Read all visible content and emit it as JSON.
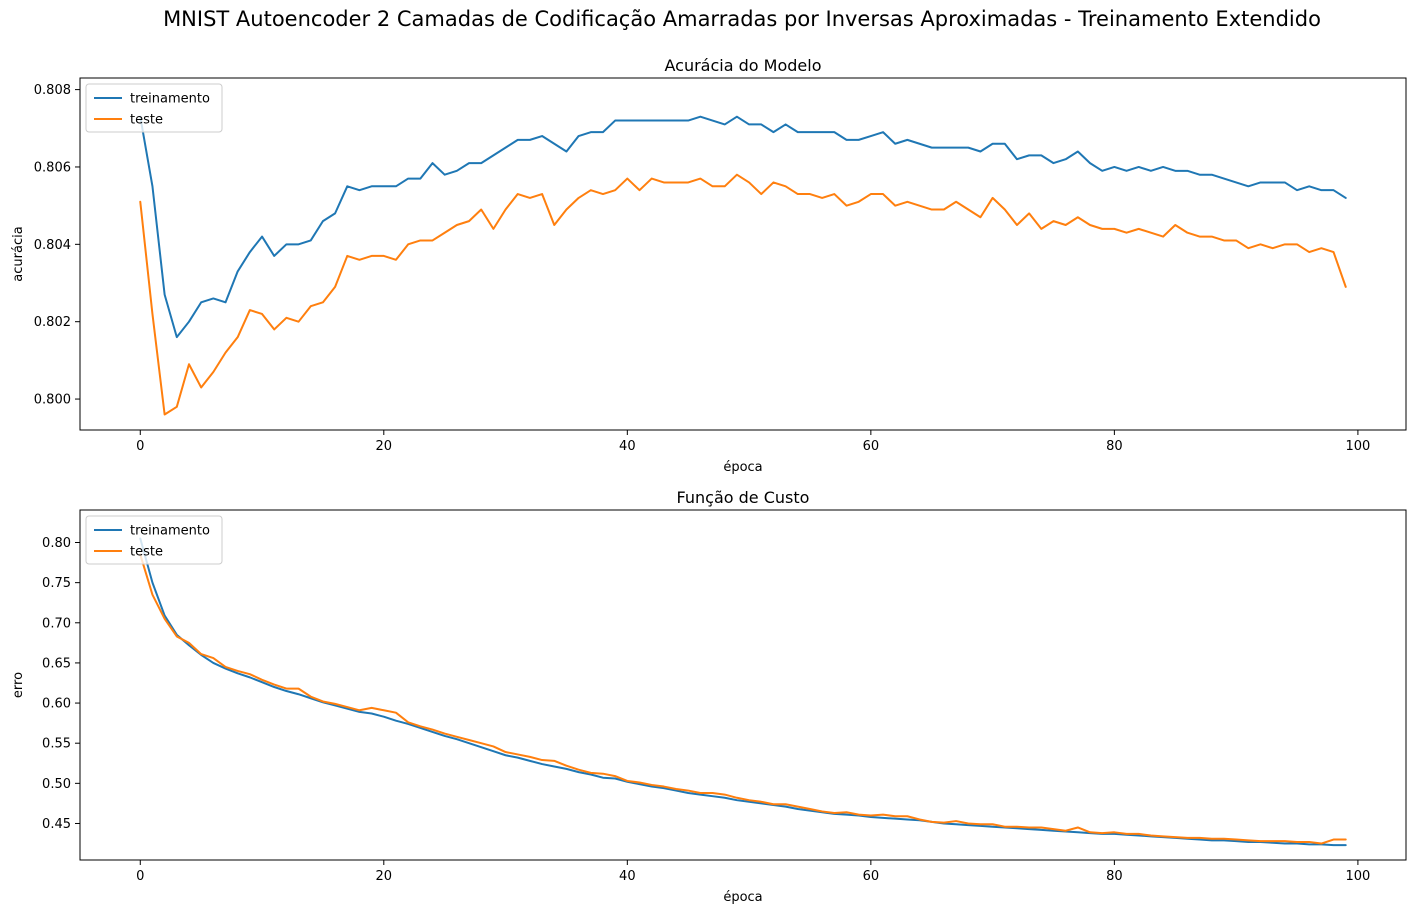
{
  "suptitle": "MNIST Autoencoder 2 Camadas de Codificação Amarradas por Inversas Aproximadas - Treinamento Extendido",
  "colors": {
    "treinamento": "#1f77b4",
    "teste": "#ff7f0e"
  },
  "chart_data": [
    {
      "type": "line",
      "title": "Acurácia do Modelo",
      "xlabel": "época",
      "ylabel": "acurácia",
      "xlim": [
        -4.95,
        103.95
      ],
      "ylim": [
        0.7992,
        0.8083
      ],
      "xticks": [
        0,
        20,
        40,
        60,
        80,
        100
      ],
      "xtick_labels": [
        "0",
        "20",
        "40",
        "60",
        "80",
        "100"
      ],
      "yticks": [
        0.8,
        0.802,
        0.804,
        0.806,
        0.808
      ],
      "ytick_labels": [
        "0.800",
        "0.802",
        "0.804",
        "0.806",
        "0.808"
      ],
      "legend": {
        "position": "upper left",
        "entries": [
          "treinamento",
          "teste"
        ]
      },
      "grid": false,
      "series": [
        {
          "name": "treinamento",
          "color": "#1f77b4",
          "values": [
            0.8073,
            0.8055,
            0.8027,
            0.8016,
            0.802,
            0.8025,
            0.8026,
            0.8025,
            0.8033,
            0.8038,
            0.8042,
            0.8037,
            0.804,
            0.804,
            0.8041,
            0.8046,
            0.8048,
            0.8055,
            0.8054,
            0.8055,
            0.8055,
            0.8055,
            0.8057,
            0.8057,
            0.8061,
            0.8058,
            0.8059,
            0.8061,
            0.8061,
            0.8063,
            0.8065,
            0.8067,
            0.8067,
            0.8068,
            0.8066,
            0.8064,
            0.8068,
            0.8069,
            0.8069,
            0.8072,
            0.8072,
            0.8072,
            0.8072,
            0.8072,
            0.8072,
            0.8072,
            0.8073,
            0.8072,
            0.8071,
            0.8073,
            0.8071,
            0.8071,
            0.8069,
            0.8071,
            0.8069,
            0.8069,
            0.8069,
            0.8069,
            0.8067,
            0.8067,
            0.8068,
            0.8069,
            0.8066,
            0.8067,
            0.8066,
            0.8065,
            0.8065,
            0.8065,
            0.8065,
            0.8064,
            0.8066,
            0.8066,
            0.8062,
            0.8063,
            0.8063,
            0.8061,
            0.8062,
            0.8064,
            0.8061,
            0.8059,
            0.806,
            0.8059,
            0.806,
            0.8059,
            0.806,
            0.8059,
            0.8059,
            0.8058,
            0.8058,
            0.8057,
            0.8056,
            0.8055,
            0.8056,
            0.8056,
            0.8056,
            0.8054,
            0.8055,
            0.8054,
            0.8054,
            0.8052
          ]
        },
        {
          "name": "teste",
          "color": "#ff7f0e",
          "values": [
            0.8051,
            0.8022,
            0.7996,
            0.7998,
            0.8009,
            0.8003,
            0.8007,
            0.8012,
            0.8016,
            0.8023,
            0.8022,
            0.8018,
            0.8021,
            0.802,
            0.8024,
            0.8025,
            0.8029,
            0.8037,
            0.8036,
            0.8037,
            0.8037,
            0.8036,
            0.804,
            0.8041,
            0.8041,
            0.8043,
            0.8045,
            0.8046,
            0.8049,
            0.8044,
            0.8049,
            0.8053,
            0.8052,
            0.8053,
            0.8045,
            0.8049,
            0.8052,
            0.8054,
            0.8053,
            0.8054,
            0.8057,
            0.8054,
            0.8057,
            0.8056,
            0.8056,
            0.8056,
            0.8057,
            0.8055,
            0.8055,
            0.8058,
            0.8056,
            0.8053,
            0.8056,
            0.8055,
            0.8053,
            0.8053,
            0.8052,
            0.8053,
            0.805,
            0.8051,
            0.8053,
            0.8053,
            0.805,
            0.8051,
            0.805,
            0.8049,
            0.8049,
            0.8051,
            0.8049,
            0.8047,
            0.8052,
            0.8049,
            0.8045,
            0.8048,
            0.8044,
            0.8046,
            0.8045,
            0.8047,
            0.8045,
            0.8044,
            0.8044,
            0.8043,
            0.8044,
            0.8043,
            0.8042,
            0.8045,
            0.8043,
            0.8042,
            0.8042,
            0.8041,
            0.8041,
            0.8039,
            0.804,
            0.8039,
            0.804,
            0.804,
            0.8038,
            0.8039,
            0.8038,
            0.8029
          ]
        }
      ]
    },
    {
      "type": "line",
      "title": "Função de Custo",
      "xlabel": "época",
      "ylabel": "erro",
      "xlim": [
        -4.95,
        103.95
      ],
      "ylim": [
        0.4045,
        0.8405
      ],
      "xticks": [
        0,
        20,
        40,
        60,
        80,
        100
      ],
      "xtick_labels": [
        "0",
        "20",
        "40",
        "60",
        "80",
        "100"
      ],
      "yticks": [
        0.45,
        0.5,
        0.55,
        0.6,
        0.65,
        0.7,
        0.75,
        0.8
      ],
      "ytick_labels": [
        "0.45",
        "0.50",
        "0.55",
        "0.60",
        "0.65",
        "0.70",
        "0.75",
        "0.80"
      ],
      "legend": {
        "position": "upper left",
        "entries": [
          "treinamento",
          "teste"
        ]
      },
      "grid": false,
      "series": [
        {
          "name": "treinamento",
          "color": "#1f77b4",
          "values": [
            0.805,
            0.75,
            0.709,
            0.685,
            0.672,
            0.66,
            0.65,
            0.643,
            0.637,
            0.632,
            0.626,
            0.62,
            0.615,
            0.611,
            0.606,
            0.601,
            0.597,
            0.593,
            0.589,
            0.587,
            0.583,
            0.578,
            0.574,
            0.569,
            0.564,
            0.559,
            0.555,
            0.55,
            0.545,
            0.54,
            0.535,
            0.532,
            0.528,
            0.524,
            0.521,
            0.518,
            0.514,
            0.511,
            0.507,
            0.506,
            0.502,
            0.499,
            0.496,
            0.494,
            0.491,
            0.488,
            0.486,
            0.484,
            0.482,
            0.479,
            0.477,
            0.475,
            0.473,
            0.471,
            0.468,
            0.466,
            0.464,
            0.462,
            0.461,
            0.46,
            0.458,
            0.457,
            0.456,
            0.455,
            0.454,
            0.452,
            0.45,
            0.449,
            0.448,
            0.447,
            0.446,
            0.445,
            0.444,
            0.443,
            0.442,
            0.441,
            0.44,
            0.439,
            0.438,
            0.437,
            0.437,
            0.436,
            0.435,
            0.434,
            0.433,
            0.432,
            0.431,
            0.43,
            0.429,
            0.429,
            0.428,
            0.427,
            0.427,
            0.426,
            0.425,
            0.425,
            0.424,
            0.424,
            0.423,
            0.423
          ]
        },
        {
          "name": "teste",
          "color": "#ff7f0e",
          "values": [
            0.785,
            0.735,
            0.705,
            0.683,
            0.675,
            0.661,
            0.656,
            0.645,
            0.64,
            0.636,
            0.629,
            0.623,
            0.618,
            0.618,
            0.608,
            0.602,
            0.599,
            0.595,
            0.591,
            0.594,
            0.591,
            0.588,
            0.576,
            0.571,
            0.567,
            0.562,
            0.558,
            0.554,
            0.55,
            0.546,
            0.539,
            0.536,
            0.533,
            0.529,
            0.528,
            0.522,
            0.517,
            0.513,
            0.512,
            0.509,
            0.503,
            0.501,
            0.498,
            0.496,
            0.493,
            0.491,
            0.488,
            0.488,
            0.486,
            0.482,
            0.479,
            0.477,
            0.474,
            0.474,
            0.471,
            0.468,
            0.465,
            0.463,
            0.464,
            0.461,
            0.46,
            0.461,
            0.459,
            0.459,
            0.455,
            0.452,
            0.451,
            0.453,
            0.45,
            0.449,
            0.449,
            0.446,
            0.446,
            0.445,
            0.445,
            0.443,
            0.441,
            0.445,
            0.439,
            0.438,
            0.439,
            0.437,
            0.437,
            0.435,
            0.434,
            0.433,
            0.432,
            0.432,
            0.431,
            0.431,
            0.43,
            0.429,
            0.428,
            0.428,
            0.428,
            0.427,
            0.427,
            0.425,
            0.43,
            0.43
          ]
        }
      ]
    }
  ]
}
